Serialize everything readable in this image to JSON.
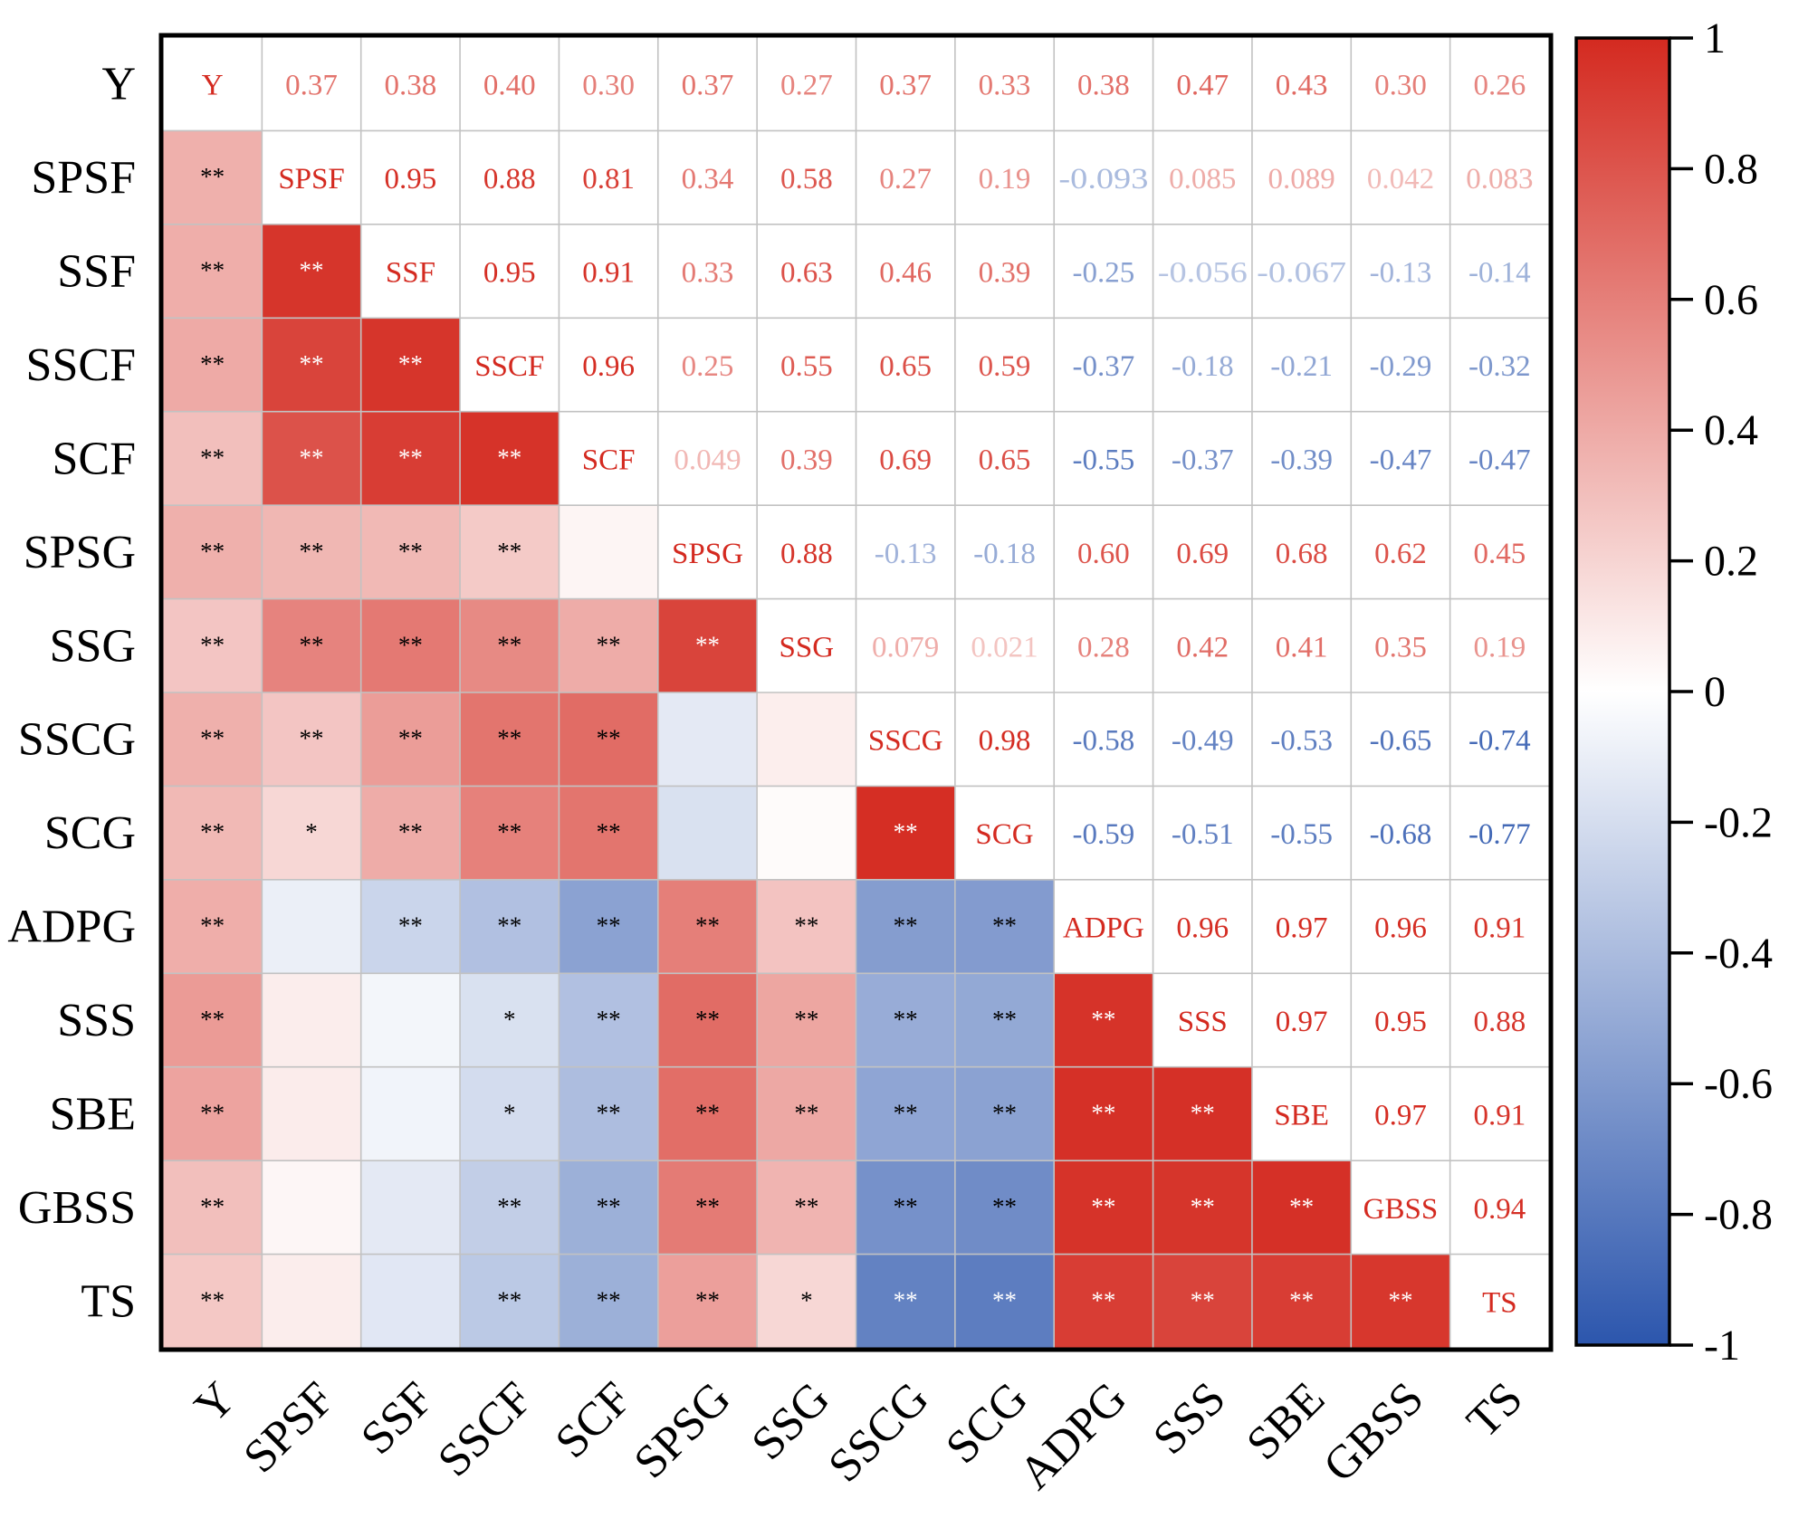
{
  "chart_data": {
    "type": "heatmap",
    "title": "",
    "variables": [
      "Y",
      "SPSF",
      "SSF",
      "SSCF",
      "SCF",
      "SPSG",
      "SSG",
      "SSCG",
      "SCG",
      "ADPG",
      "SSS",
      "SBE",
      "GBSS",
      "TS"
    ],
    "correlations": [
      [
        1,
        0.37,
        0.38,
        0.4,
        0.3,
        0.37,
        0.27,
        0.37,
        0.33,
        0.38,
        0.47,
        0.43,
        0.3,
        0.26
      ],
      [
        0.37,
        1,
        0.95,
        0.88,
        0.81,
        0.34,
        0.58,
        0.27,
        0.19,
        -0.093,
        0.085,
        0.089,
        0.042,
        0.083
      ],
      [
        0.38,
        0.95,
        1,
        0.95,
        0.91,
        0.33,
        0.63,
        0.46,
        0.39,
        -0.25,
        -0.056,
        -0.067,
        -0.13,
        -0.14
      ],
      [
        0.4,
        0.88,
        0.95,
        1,
        0.96,
        0.25,
        0.55,
        0.65,
        0.59,
        -0.37,
        -0.18,
        -0.21,
        -0.29,
        -0.32
      ],
      [
        0.3,
        0.81,
        0.91,
        0.96,
        1,
        0.049,
        0.39,
        0.69,
        0.65,
        -0.55,
        -0.37,
        -0.39,
        -0.47,
        -0.47
      ],
      [
        0.37,
        0.34,
        0.33,
        0.25,
        0.049,
        1,
        0.88,
        -0.13,
        -0.18,
        0.6,
        0.69,
        0.68,
        0.62,
        0.45
      ],
      [
        0.27,
        0.58,
        0.63,
        0.55,
        0.39,
        0.88,
        1,
        0.079,
        0.021,
        0.28,
        0.42,
        0.41,
        0.35,
        0.19
      ],
      [
        0.37,
        0.27,
        0.46,
        0.65,
        0.69,
        -0.13,
        0.079,
        1,
        0.98,
        -0.58,
        -0.49,
        -0.53,
        -0.65,
        -0.74
      ],
      [
        0.33,
        0.19,
        0.39,
        0.59,
        0.65,
        -0.18,
        0.021,
        0.98,
        1,
        -0.59,
        -0.51,
        -0.55,
        -0.68,
        -0.77
      ],
      [
        0.38,
        -0.093,
        -0.25,
        -0.37,
        -0.55,
        0.6,
        0.28,
        -0.58,
        -0.59,
        1,
        0.96,
        0.97,
        0.96,
        0.91
      ],
      [
        0.47,
        0.085,
        -0.056,
        -0.18,
        -0.37,
        0.69,
        0.42,
        -0.49,
        -0.51,
        0.96,
        1,
        0.97,
        0.95,
        0.88
      ],
      [
        0.43,
        0.089,
        -0.067,
        -0.21,
        -0.39,
        0.68,
        0.41,
        -0.53,
        -0.55,
        0.97,
        0.97,
        1,
        0.97,
        0.91
      ],
      [
        0.3,
        0.042,
        -0.13,
        -0.29,
        -0.47,
        0.62,
        0.35,
        -0.65,
        -0.68,
        0.96,
        0.95,
        0.97,
        1,
        0.94
      ],
      [
        0.26,
        0.083,
        -0.14,
        -0.32,
        -0.47,
        0.45,
        0.19,
        -0.74,
        -0.77,
        0.91,
        0.88,
        0.91,
        0.94,
        1
      ]
    ],
    "upper_labels": [
      [
        "Y",
        "0.37",
        "0.38",
        "0.40",
        "0.30",
        "0.37",
        "0.27",
        "0.37",
        "0.33",
        "0.38",
        "0.47",
        "0.43",
        "0.30",
        "0.26"
      ],
      [
        "",
        "SPSF",
        "0.95",
        "0.88",
        "0.81",
        "0.34",
        "0.58",
        "0.27",
        "0.19",
        "-0.093",
        "0.085",
        "0.089",
        "0.042",
        "0.083"
      ],
      [
        "",
        "",
        "SSF",
        "0.95",
        "0.91",
        "0.33",
        "0.63",
        "0.46",
        "0.39",
        "-0.25",
        "-0.056",
        "-0.067",
        "-0.13",
        "-0.14"
      ],
      [
        "",
        "",
        "",
        "SSCF",
        "0.96",
        "0.25",
        "0.55",
        "0.65",
        "0.59",
        "-0.37",
        "-0.18",
        "-0.21",
        "-0.29",
        "-0.32"
      ],
      [
        "",
        "",
        "",
        "",
        "SCF",
        "0.049",
        "0.39",
        "0.69",
        "0.65",
        "-0.55",
        "-0.37",
        "-0.39",
        "-0.47",
        "-0.47"
      ],
      [
        "",
        "",
        "",
        "",
        "",
        "SPSG",
        "0.88",
        "-0.13",
        "-0.18",
        "0.60",
        "0.69",
        "0.68",
        "0.62",
        "0.45"
      ],
      [
        "",
        "",
        "",
        "",
        "",
        "",
        "SSG",
        "0.079",
        "0.021",
        "0.28",
        "0.42",
        "0.41",
        "0.35",
        "0.19"
      ],
      [
        "",
        "",
        "",
        "",
        "",
        "",
        "",
        "SSCG",
        "0.98",
        "-0.58",
        "-0.49",
        "-0.53",
        "-0.65",
        "-0.74"
      ],
      [
        "",
        "",
        "",
        "",
        "",
        "",
        "",
        "",
        "SCG",
        "-0.59",
        "-0.51",
        "-0.55",
        "-0.68",
        "-0.77"
      ],
      [
        "",
        "",
        "",
        "",
        "",
        "",
        "",
        "",
        "",
        "ADPG",
        "0.96",
        "0.97",
        "0.96",
        "0.91"
      ],
      [
        "",
        "",
        "",
        "",
        "",
        "",
        "",
        "",
        "",
        "",
        "SSS",
        "0.97",
        "0.95",
        "0.88"
      ],
      [
        "",
        "",
        "",
        "",
        "",
        "",
        "",
        "",
        "",
        "",
        "",
        "SBE",
        "0.97",
        "0.91"
      ],
      [
        "",
        "",
        "",
        "",
        "",
        "",
        "",
        "",
        "",
        "",
        "",
        "",
        "GBSS",
        "0.94"
      ],
      [
        "",
        "",
        "",
        "",
        "",
        "",
        "",
        "",
        "",
        "",
        "",
        "",
        "",
        "TS"
      ]
    ],
    "significance": [
      [
        "",
        "",
        "",
        "",
        "",
        "",
        "",
        "",
        "",
        "",
        "",
        "",
        "",
        ""
      ],
      [
        "**",
        "",
        "",
        "",
        "",
        "",
        "",
        "",
        "",
        "",
        "",
        "",
        "",
        ""
      ],
      [
        "**",
        "**",
        "",
        "",
        "",
        "",
        "",
        "",
        "",
        "",
        "",
        "",
        "",
        ""
      ],
      [
        "**",
        "**",
        "**",
        "",
        "",
        "",
        "",
        "",
        "",
        "",
        "",
        "",
        "",
        ""
      ],
      [
        "**",
        "**",
        "**",
        "**",
        "",
        "",
        "",
        "",
        "",
        "",
        "",
        "",
        "",
        ""
      ],
      [
        "**",
        "**",
        "**",
        "**",
        "",
        "",
        "",
        "",
        "",
        "",
        "",
        "",
        "",
        ""
      ],
      [
        "**",
        "**",
        "**",
        "**",
        "**",
        "**",
        "",
        "",
        "",
        "",
        "",
        "",
        "",
        ""
      ],
      [
        "**",
        "**",
        "**",
        "**",
        "**",
        "",
        "",
        "",
        "",
        "",
        "",
        "",
        "",
        ""
      ],
      [
        "**",
        "*",
        "**",
        "**",
        "**",
        "",
        "",
        "**",
        "",
        "",
        "",
        "",
        "",
        ""
      ],
      [
        "**",
        "",
        "**",
        "**",
        "**",
        "**",
        "**",
        "**",
        "**",
        "",
        "",
        "",
        "",
        ""
      ],
      [
        "**",
        "",
        "",
        "*",
        "**",
        "**",
        "**",
        "**",
        "**",
        "**",
        "",
        "",
        "",
        ""
      ],
      [
        "**",
        "",
        "",
        "*",
        "**",
        "**",
        "**",
        "**",
        "**",
        "**",
        "**",
        "",
        "",
        ""
      ],
      [
        "**",
        "",
        "",
        "**",
        "**",
        "**",
        "**",
        "**",
        "**",
        "**",
        "**",
        "**",
        "",
        ""
      ],
      [
        "**",
        "",
        "",
        "**",
        "**",
        "**",
        "*",
        "**",
        "**",
        "**",
        "**",
        "**",
        "**",
        ""
      ]
    ],
    "colorbar": {
      "ticks": [
        "1",
        "0.8",
        "0.6",
        "0.4",
        "0.2",
        "0",
        "-0.2",
        "-0.4",
        "-0.6",
        "-0.8",
        "-1"
      ],
      "tick_values": [
        1,
        0.8,
        0.6,
        0.4,
        0.2,
        0,
        -0.2,
        -0.4,
        -0.6,
        -0.8,
        -1
      ],
      "range": [
        -1,
        1
      ],
      "colors": {
        "positive": "#d42a20",
        "zero": "#ffffff",
        "negative": "#2c56ad"
      }
    }
  }
}
